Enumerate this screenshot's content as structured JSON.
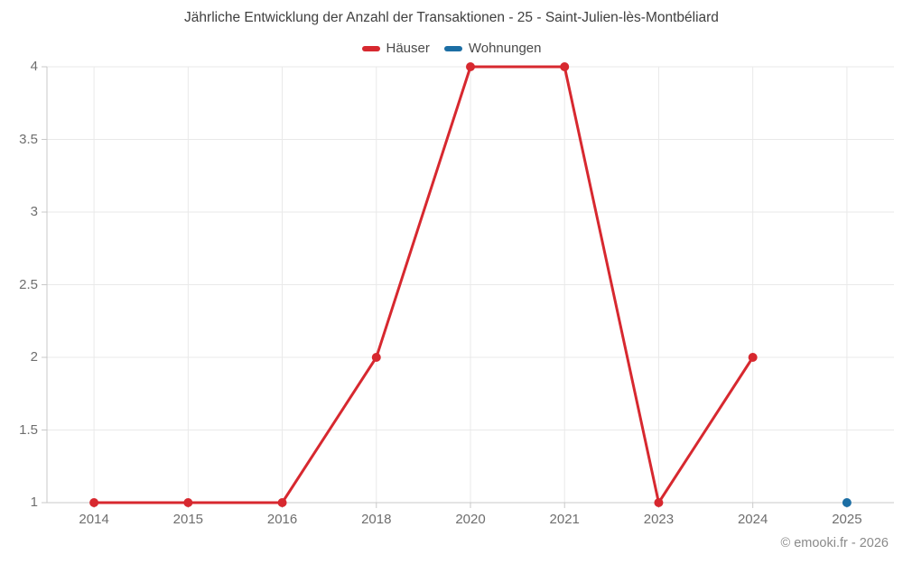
{
  "title": "Jährliche Entwicklung der Anzahl der Transaktionen - 25 - Saint-Julien-lès-Montbéliard",
  "footer": "© emooki.fr - 2026",
  "legend": [
    {
      "label": "Häuser",
      "color": "#d7282f"
    },
    {
      "label": "Wohnungen",
      "color": "#1c6ea4"
    }
  ],
  "colors": {
    "grid": "#e9e9e9",
    "axis": "#c9c9c9",
    "tick_text": "#6e6e6e"
  },
  "chart_data": {
    "type": "line",
    "title": "Jährliche Entwicklung der Anzahl der Transaktionen - 25 - Saint-Julien-lès-Montbéliard",
    "categories": [
      "2014",
      "2015",
      "2016",
      "2018",
      "2020",
      "2021",
      "2023",
      "2024",
      "2025"
    ],
    "series": [
      {
        "name": "Häuser",
        "color": "#d7282f",
        "values": [
          1,
          1,
          1,
          2,
          4,
          4,
          1,
          2,
          null
        ]
      },
      {
        "name": "Wohnungen",
        "color": "#1c6ea4",
        "values": [
          null,
          null,
          null,
          null,
          null,
          null,
          null,
          null,
          1
        ]
      }
    ],
    "xlabel": "",
    "ylabel": "",
    "ylim": [
      1,
      4
    ],
    "yticks": [
      1,
      1.5,
      2,
      2.5,
      3,
      3.5,
      4
    ],
    "ytick_labels": [
      "1",
      "1.5",
      "2",
      "2.5",
      "3",
      "3.5",
      "4"
    ],
    "grid": true,
    "legend_position": "top"
  }
}
